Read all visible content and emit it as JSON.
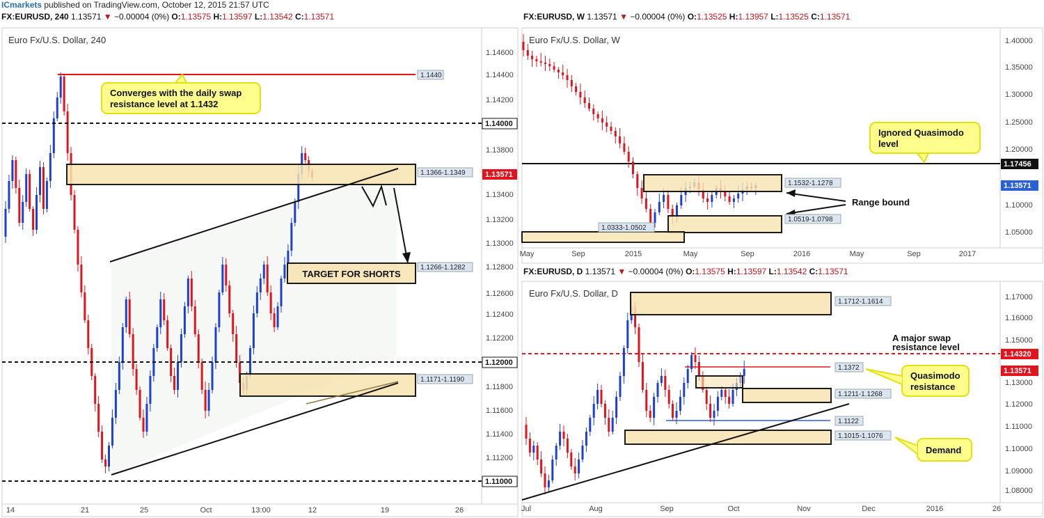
{
  "header": {
    "brand": "ICmarkets",
    "published": "published on TradingView.com, October 12, 2015 21:57 UTC"
  },
  "colors": {
    "bull": "#1e3fd6",
    "bear": "#e0141c",
    "zone_fill": "#f7e3b0",
    "zone_border": "#1a1a1a",
    "callout_fill": "#fdfd8c",
    "callout_border": "#e0e013",
    "price_tag": "#e0141c",
    "blue_tag": "#2a5fd6"
  },
  "panels": {
    "h4": {
      "header": {
        "symbol": "FX:EURUSD, 240",
        "last": "1.13571",
        "change": "−0.00004 (0%)",
        "o": "1.13575",
        "h": "1.13597",
        "l": "1.13542",
        "c": "1.13571"
      },
      "title": "Euro Fx/U.S. Dollar, 240",
      "y_ticks": [
        "1.14600",
        "1.14400",
        "1.14200",
        "1.13800",
        "1.13400",
        "1.13200",
        "1.13000",
        "1.12800",
        "1.12600",
        "1.12400",
        "1.12200",
        "1.11800",
        "1.11600",
        "1.11400",
        "1.11200"
      ],
      "x_ticks": [
        "14",
        "21",
        "25",
        "Oct",
        "13:00",
        "12",
        "19",
        "26"
      ],
      "tags": {
        "1140": "1.14000",
        "last": "1.13571",
        "1120": "1.12000",
        "1110": "1.11000",
        "r1440": "1.1440",
        "z1": "1.1366-1.1349",
        "z2": "1.1266-1.1282",
        "z3": "1.1171-1.1190"
      },
      "callouts": {
        "converge": "Converges with the daily swap resistance level at 1.1432",
        "target": "TARGET FOR SHORTS"
      }
    },
    "weekly": {
      "header": {
        "symbol": "FX:EURUSD, W",
        "last": "1.13571",
        "change": "−0.00004 (0%)",
        "o": "1.13525",
        "h": "1.13957",
        "l": "1.13525",
        "c": "1.13571"
      },
      "title": "Euro Fx/U.S. Dollar, W",
      "y_ticks": [
        "1.40000",
        "1.35000",
        "1.30000",
        "1.25000",
        "1.20000",
        "1.10000",
        "1.05000"
      ],
      "x_ticks": [
        "May",
        "Sep",
        "2015",
        "May",
        "Sep",
        "2016",
        "May",
        "Sep",
        "2017"
      ],
      "tags": {
        "qm": "1.17456",
        "last": "1.13571",
        "z1": "1.1532-1.1278",
        "z2": "1.0519-1.0798",
        "z3": "1.0333-1.0502"
      },
      "callouts": {
        "ignored": "Ignored Quasimodo level",
        "range": "Range bound"
      }
    },
    "daily": {
      "header": {
        "symbol": "FX:EURUSD, D",
        "last": "1.13571",
        "change": "−0.00004 (0%)",
        "o": "1.13575",
        "h": "1.13597",
        "l": "1.13542",
        "c": "1.13571"
      },
      "title": "Euro Fx/U.S. Dollar, D",
      "y_ticks": [
        "1.17000",
        "1.16000",
        "1.15000",
        "1.13000",
        "1.12000",
        "1.11000",
        "1.10000",
        "1.09000",
        "1.08000"
      ],
      "x_ticks": [
        "Jul",
        "Aug",
        "Sep",
        "Oct",
        "Nov",
        "Dec",
        "2016",
        "26"
      ],
      "tags": {
        "swap": "1.14320",
        "last": "1.13571",
        "qm": "1.1372",
        "z1": "1.1712-1.1614",
        "z2": "1.1211-1.1268",
        "z3": "1.1015-1.1076",
        "support": "1.1122"
      },
      "callouts": {
        "swap": "A major swap resistance level",
        "qm": "Quasimodo resistance",
        "demand": "Demand"
      }
    }
  }
}
